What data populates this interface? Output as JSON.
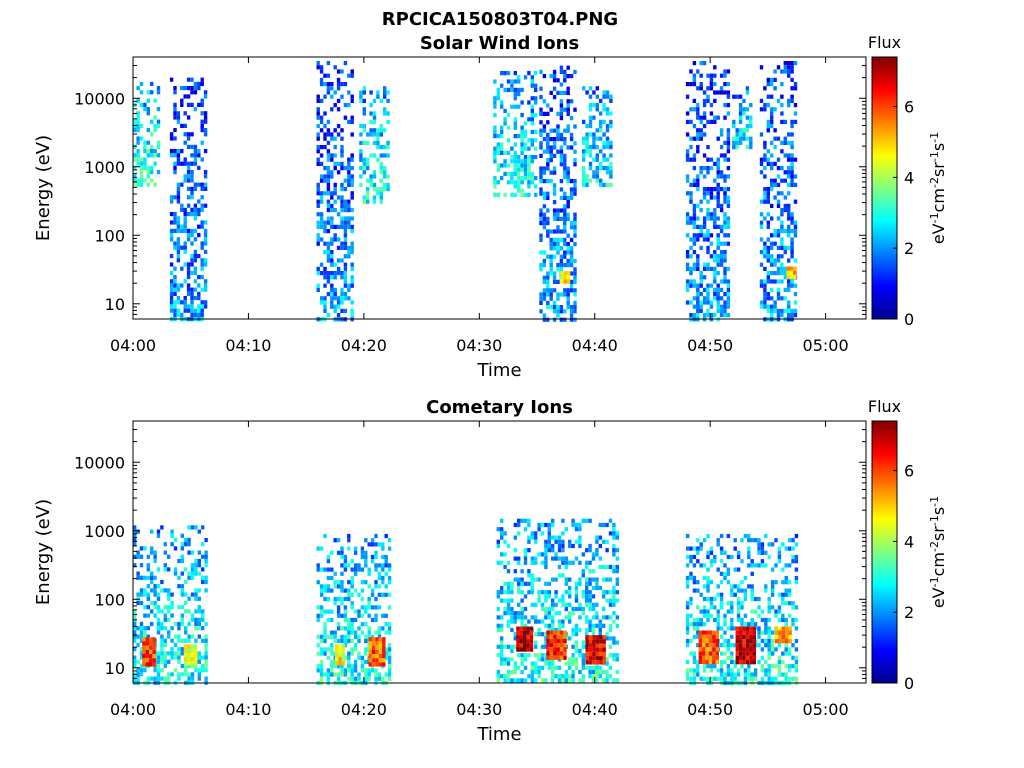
{
  "figure_title": "RPCICA150803T04.PNG",
  "colors": {
    "jet": [
      "#00008f",
      "#0000ff",
      "#0080ff",
      "#00ffff",
      "#80ff80",
      "#ffff00",
      "#ff8000",
      "#ff0000",
      "#800000"
    ],
    "axis": "#000000",
    "background": "#ffffff"
  },
  "chart_data": [
    {
      "type": "heatmap",
      "title": "Solar Wind Ions",
      "xlabel": "Time",
      "ylabel": "Energy (eV)",
      "x_ticks": [
        "04:00",
        "04:10",
        "04:20",
        "04:30",
        "04:40",
        "04:50",
        "05:00"
      ],
      "x_tick_minutes": [
        0,
        10,
        20,
        30,
        40,
        50,
        60
      ],
      "xlim_minutes": [
        0,
        63.5
      ],
      "y_ticks": [
        "10",
        "100",
        "1000",
        "10000"
      ],
      "y_tick_values": [
        10,
        100,
        1000,
        10000
      ],
      "y_scale": "log",
      "ylim": [
        6,
        40000
      ],
      "colorbar": {
        "title": "Flux",
        "label": "eV-1cm-2sr-1s-1",
        "ticks": [
          0,
          2,
          4,
          6
        ],
        "range": [
          0,
          7.4
        ]
      },
      "bursts": [
        {
          "start_min": 0.0,
          "end_min": 2.2,
          "emin": 500,
          "emax": 20000,
          "flux": 2.2
        },
        {
          "start_min": 3.2,
          "end_min": 6.3,
          "emin": 6,
          "emax": 20000,
          "flux": 1.2
        },
        {
          "start_min": 15.9,
          "end_min": 19.2,
          "emin": 6,
          "emax": 35000,
          "flux": 1.2
        },
        {
          "start_min": 19.6,
          "end_min": 22.3,
          "emin": 300,
          "emax": 15000,
          "flux": 2.0
        },
        {
          "start_min": 31.2,
          "end_min": 35.0,
          "emin": 400,
          "emax": 25000,
          "flux": 1.9
        },
        {
          "start_min": 35.2,
          "end_min": 38.4,
          "emin": 6,
          "emax": 30000,
          "flux": 1.3
        },
        {
          "start_min": 38.9,
          "end_min": 41.5,
          "emin": 500,
          "emax": 15000,
          "flux": 1.8
        },
        {
          "start_min": 47.9,
          "end_min": 51.8,
          "emin": 6,
          "emax": 35000,
          "flux": 1.2
        },
        {
          "start_min": 51.9,
          "end_min": 53.5,
          "emin": 2000,
          "emax": 15000,
          "flux": 1.8
        },
        {
          "start_min": 54.3,
          "end_min": 57.5,
          "emin": 6,
          "emax": 35000,
          "flux": 1.3
        }
      ],
      "hotspots": [
        {
          "start_min": 37.0,
          "end_min": 37.8,
          "emin": 22,
          "emax": 30,
          "flux": 4.6
        },
        {
          "start_min": 56.6,
          "end_min": 57.3,
          "emin": 25,
          "emax": 35,
          "flux": 5.2
        }
      ]
    },
    {
      "type": "heatmap",
      "title": "Cometary Ions",
      "xlabel": "Time",
      "ylabel": "Energy (eV)",
      "x_ticks": [
        "04:00",
        "04:10",
        "04:20",
        "04:30",
        "04:40",
        "04:50",
        "05:00"
      ],
      "x_tick_minutes": [
        0,
        10,
        20,
        30,
        40,
        50,
        60
      ],
      "xlim_minutes": [
        0,
        63.5
      ],
      "y_ticks": [
        "10",
        "100",
        "1000",
        "10000"
      ],
      "y_tick_values": [
        10,
        100,
        1000,
        10000
      ],
      "y_scale": "log",
      "ylim": [
        6,
        40000
      ],
      "colorbar": {
        "title": "Flux",
        "label": "eV-1cm-2sr-1s-1",
        "ticks": [
          0,
          2,
          4,
          6
        ],
        "range": [
          0,
          7.4
        ]
      },
      "bursts": [
        {
          "start_min": 0.0,
          "end_min": 6.3,
          "emin": 6,
          "emax": 1200,
          "flux": 2.0
        },
        {
          "start_min": 15.9,
          "end_min": 22.3,
          "emin": 6,
          "emax": 900,
          "flux": 2.0
        },
        {
          "start_min": 31.5,
          "end_min": 42.0,
          "emin": 6,
          "emax": 1500,
          "flux": 2.0
        },
        {
          "start_min": 47.9,
          "end_min": 57.5,
          "emin": 6,
          "emax": 900,
          "flux": 2.0
        }
      ],
      "hotspots": [
        {
          "start_min": 0.8,
          "end_min": 1.8,
          "emin": 12,
          "emax": 28,
          "flux": 6.0
        },
        {
          "start_min": 4.4,
          "end_min": 5.3,
          "emin": 12,
          "emax": 22,
          "flux": 4.4
        },
        {
          "start_min": 17.5,
          "end_min": 18.3,
          "emin": 12,
          "emax": 22,
          "flux": 4.6
        },
        {
          "start_min": 20.4,
          "end_min": 21.6,
          "emin": 12,
          "emax": 28,
          "flux": 5.8
        },
        {
          "start_min": 33.2,
          "end_min": 34.6,
          "emin": 18,
          "emax": 40,
          "flux": 6.9
        },
        {
          "start_min": 35.8,
          "end_min": 37.4,
          "emin": 14,
          "emax": 35,
          "flux": 6.2
        },
        {
          "start_min": 39.2,
          "end_min": 40.8,
          "emin": 12,
          "emax": 30,
          "flux": 6.6
        },
        {
          "start_min": 49.0,
          "end_min": 50.6,
          "emin": 12,
          "emax": 35,
          "flux": 5.8
        },
        {
          "start_min": 52.2,
          "end_min": 53.8,
          "emin": 12,
          "emax": 40,
          "flux": 6.9
        },
        {
          "start_min": 55.6,
          "end_min": 57.0,
          "emin": 25,
          "emax": 40,
          "flux": 5.4
        }
      ]
    }
  ]
}
